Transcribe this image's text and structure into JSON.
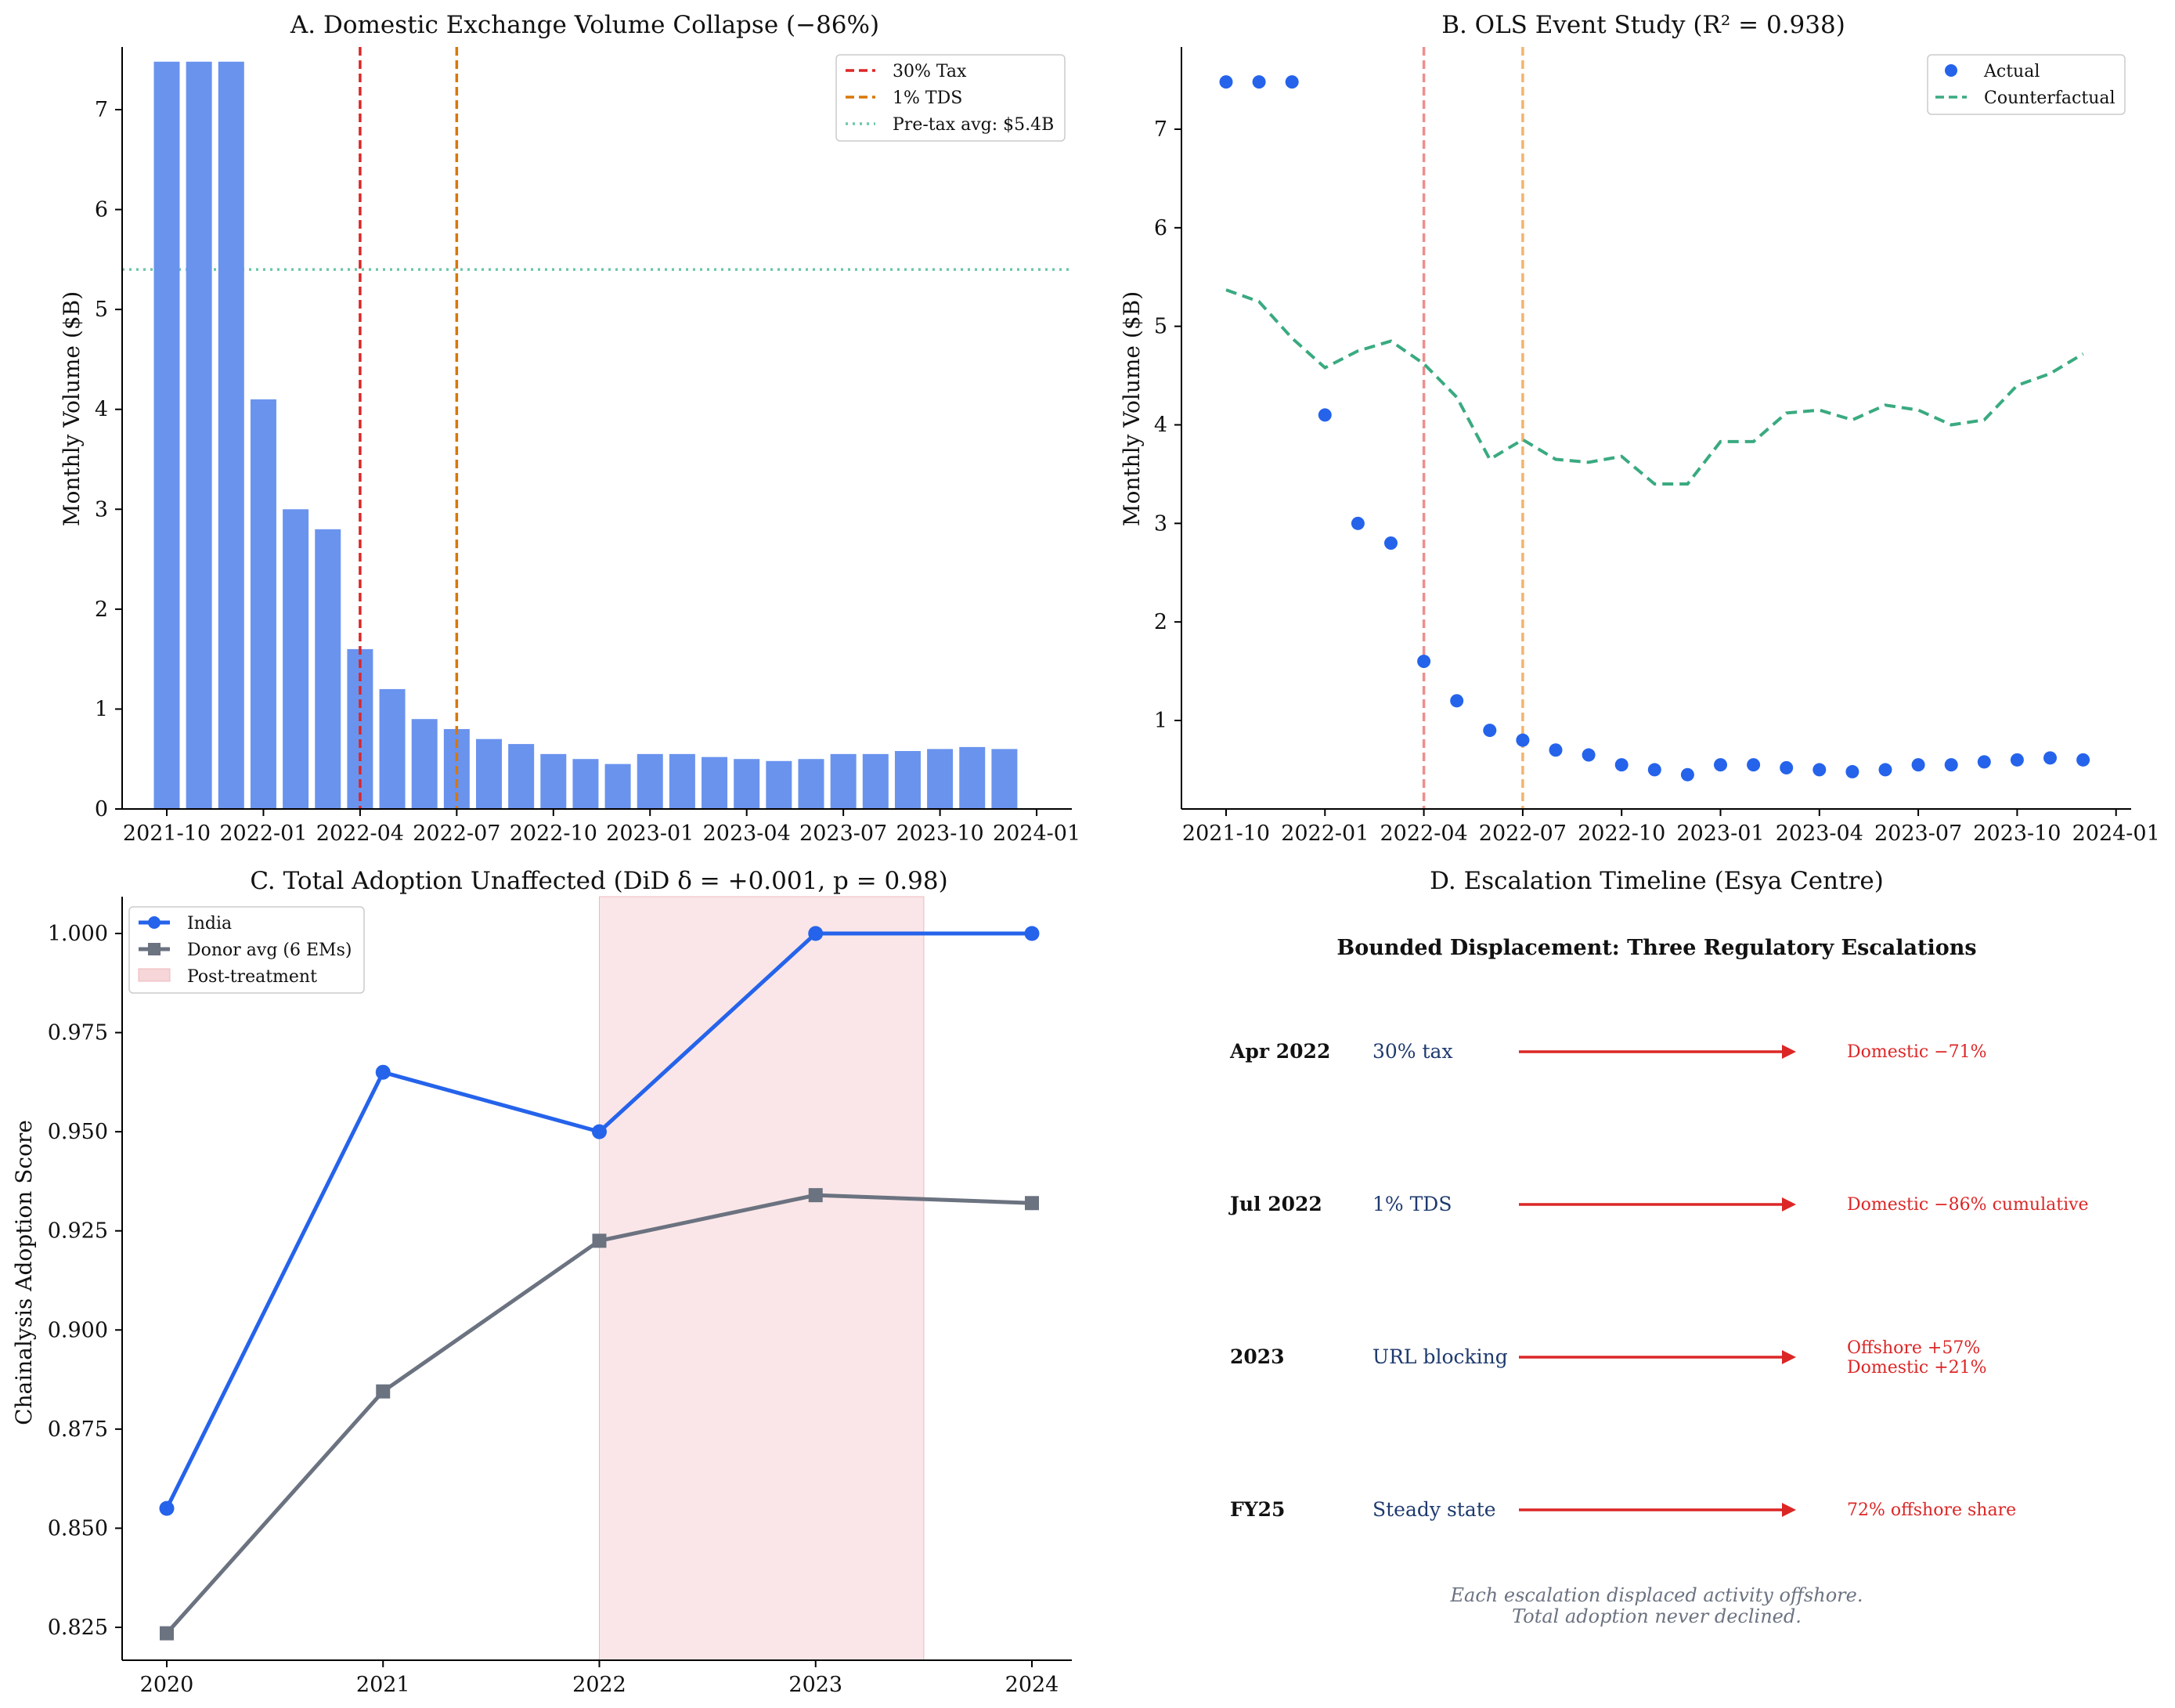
{
  "colors": {
    "bar": "#6a93ee",
    "dot": "#2563eb",
    "india": "#2563eb",
    "donor": "#6b7280",
    "tax": "#dc2626",
    "tds": "#d97706",
    "taxLight": "#ee8e8e",
    "tdsLight": "#f3b46d",
    "pretax": "#6cc7a6",
    "counter": "#3aaa80",
    "shade": "#f6d6d8",
    "navy": "#1e3a6e",
    "red": "#dc2626",
    "gray": "#6b7280"
  },
  "chart_data": [
    {
      "type": "bar",
      "title": "A. Domestic Exchange Volume Collapse (−86%)",
      "xlabel": "",
      "ylabel": "Monthly Volume ($B)",
      "x_months": [
        0,
        1,
        2,
        3,
        4,
        5,
        6,
        7,
        8,
        9,
        10,
        11,
        12,
        13,
        14,
        15,
        16,
        17,
        18,
        19,
        20,
        21,
        22,
        23,
        24,
        25,
        26
      ],
      "values": [
        7.48,
        7.48,
        7.48,
        4.1,
        3.0,
        2.8,
        1.6,
        1.2,
        0.9,
        0.8,
        0.7,
        0.65,
        0.55,
        0.5,
        0.45,
        0.55,
        0.55,
        0.52,
        0.5,
        0.48,
        0.5,
        0.55,
        0.55,
        0.58,
        0.6,
        0.62,
        0.6
      ],
      "xticks": [
        "2021-10",
        "2022-01",
        "2022-04",
        "2022-07",
        "2022-10",
        "2023-01",
        "2023-04",
        "2023-07",
        "2023-10",
        "2024-01"
      ],
      "yticks": [
        "0",
        "1",
        "2",
        "3",
        "4",
        "5",
        "6",
        "7"
      ],
      "ylim": [
        0,
        7.85
      ],
      "vlines": [
        {
          "label": "30% Tax",
          "month": 6
        },
        {
          "label": "1% TDS",
          "month": 9
        }
      ],
      "hline": {
        "label": "Pre-tax avg: $5.4B",
        "value": 5.4
      },
      "legend": [
        "30% Tax",
        "1% TDS",
        "Pre-tax avg: $5.4B"
      ]
    },
    {
      "type": "scatter",
      "title": "B. OLS Event Study (R² = 0.938)",
      "xlabel": "",
      "ylabel": "Monthly Volume ($B)",
      "x_months": [
        0,
        1,
        2,
        3,
        4,
        5,
        6,
        7,
        8,
        9,
        10,
        11,
        12,
        13,
        14,
        15,
        16,
        17,
        18,
        19,
        20,
        21,
        22,
        23,
        24,
        25,
        26
      ],
      "actual": [
        7.48,
        7.48,
        7.48,
        4.1,
        3.0,
        2.8,
        1.6,
        1.2,
        0.9,
        0.8,
        0.7,
        0.65,
        0.55,
        0.5,
        0.45,
        0.55,
        0.55,
        0.52,
        0.5,
        0.48,
        0.5,
        0.55,
        0.55,
        0.58,
        0.6,
        0.62,
        0.6
      ],
      "counterfactual": [
        5.37,
        5.25,
        4.88,
        4.58,
        4.75,
        4.85,
        4.62,
        4.28,
        3.65,
        3.85,
        3.65,
        3.62,
        3.68,
        3.4,
        3.4,
        3.83,
        3.83,
        4.12,
        4.15,
        4.05,
        4.2,
        4.15,
        4.0,
        4.05,
        4.4,
        4.52,
        4.72
      ],
      "xticks": [
        "2021-10",
        "2022-01",
        "2022-04",
        "2022-07",
        "2022-10",
        "2023-01",
        "2023-04",
        "2023-07",
        "2023-10",
        "2024-01"
      ],
      "yticks": [
        "1",
        "2",
        "3",
        "4",
        "5",
        "6",
        "7"
      ],
      "ylim": [
        0.1,
        7.85
      ],
      "vlines": [
        6,
        9
      ],
      "legend": [
        "Actual",
        "Counterfactual"
      ]
    },
    {
      "type": "line",
      "title": "C. Total Adoption Unaffected (DiD δ = +0.001, p = 0.98)",
      "xlabel": "",
      "ylabel": "Chainalysis Adoption Score",
      "x": [
        2020,
        2021,
        2022,
        2023,
        2024
      ],
      "series": [
        {
          "name": "India",
          "values": [
            0.855,
            0.965,
            0.95,
            1.0,
            1.0
          ]
        },
        {
          "name": "Donor avg (6 EMs)",
          "values": [
            0.8235,
            0.8845,
            0.9225,
            0.934,
            0.932
          ]
        }
      ],
      "xticks": [
        "2020",
        "2021",
        "2022",
        "2023",
        "2024"
      ],
      "yticks": [
        "0.825",
        "0.850",
        "0.875",
        "0.900",
        "0.925",
        "0.950",
        "0.975",
        "1.000"
      ],
      "ylim": [
        0.8155,
        1.0085
      ],
      "shade": {
        "label": "Post-treatment",
        "from": 2022,
        "to": 2023.5
      },
      "legend": [
        "India",
        "Donor avg (6 EMs)",
        "Post-treatment"
      ]
    }
  ],
  "panelD": {
    "title": "D. Escalation Timeline (Esya Centre)",
    "heading": "Bounded Displacement: Three Regulatory Escalations",
    "rows": [
      {
        "date": "Apr 2022",
        "action": "30% tax",
        "effect1": "Domestic −71%",
        "effect2": ""
      },
      {
        "date": "Jul 2022",
        "action": "1% TDS",
        "effect1": "Domestic −86% cumulative",
        "effect2": ""
      },
      {
        "date": "2023",
        "action": "URL blocking",
        "effect1": "Offshore +57%",
        "effect2": "Domestic +21%"
      },
      {
        "date": "FY25",
        "action": "Steady state",
        "effect1": "72% offshore share",
        "effect2": ""
      }
    ],
    "footer1": "Each escalation displaced activity offshore.",
    "footer2": "Total adoption never declined."
  }
}
